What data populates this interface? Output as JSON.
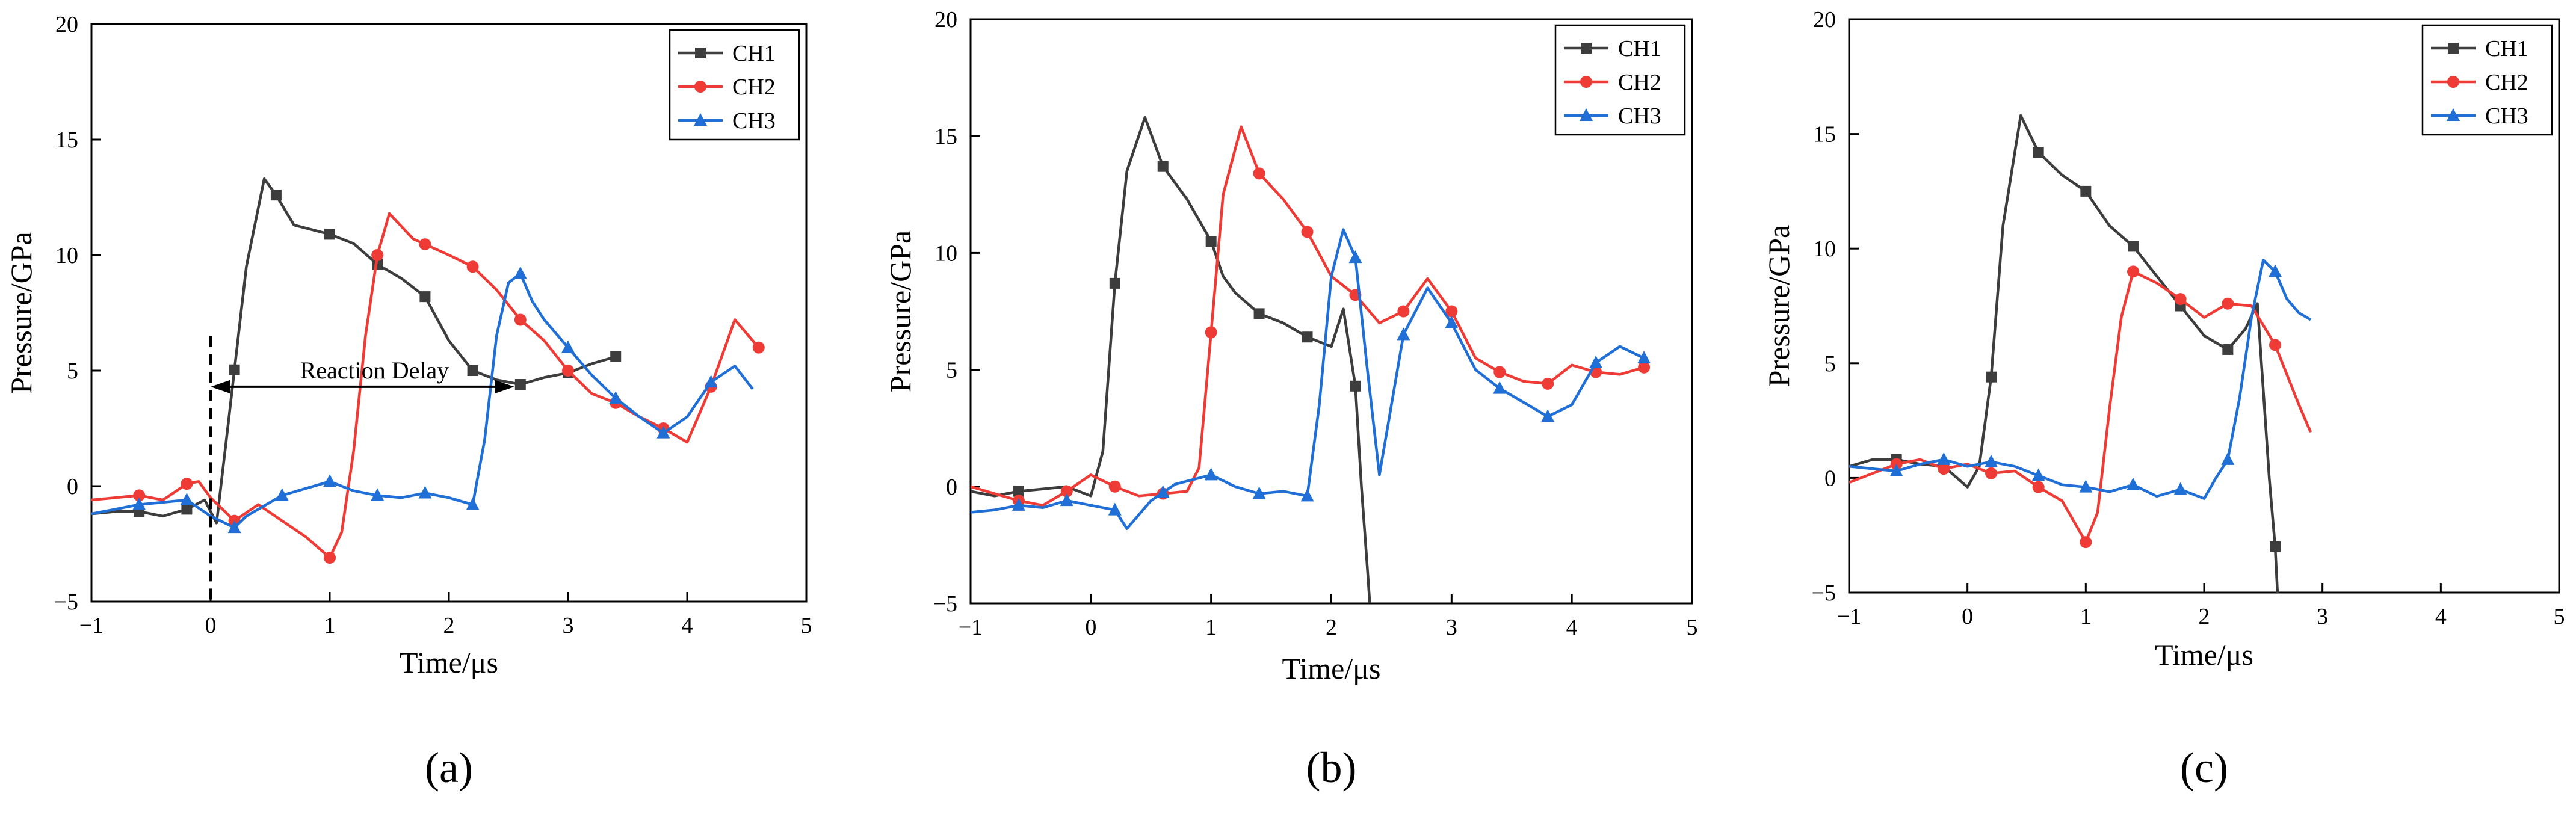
{
  "colors": {
    "CH1": "#3d3d3d",
    "CH2": "#ef3b36",
    "CH3": "#1f6fd6",
    "axis": "#000000"
  },
  "chart_data": [
    {
      "type": "line",
      "label": "(a)",
      "xlabel": "Time/μs",
      "ylabel": "Pressure/GPa",
      "xlim": [
        -1,
        5
      ],
      "ylim": [
        -5,
        20
      ],
      "xticks": [
        "−1",
        "0",
        "1",
        "2",
        "3",
        "4",
        "5"
      ],
      "yticks": [
        "−5",
        "0",
        "5",
        "10",
        "15",
        "20"
      ],
      "legend": "top-right",
      "annotation": {
        "text": "Reaction Delay",
        "from_x": 0,
        "to_x": 2.55,
        "y": 4.3,
        "dashed_line_x": 0
      },
      "series": [
        {
          "name": "CH1",
          "marker": "square",
          "x": [
            -1,
            -0.8,
            -0.6,
            -0.4,
            -0.2,
            -0.05,
            0.05,
            0.15,
            0.3,
            0.45,
            0.55,
            0.7,
            1.0,
            1.2,
            1.4,
            1.6,
            1.8,
            2.0,
            2.2,
            2.4,
            2.6,
            2.8,
            3.0,
            3.2,
            3.4
          ],
          "y": [
            -1.2,
            -1.1,
            -1.1,
            -1.3,
            -1.0,
            -0.6,
            -1.6,
            2.8,
            9.5,
            13.3,
            12.6,
            11.3,
            10.9,
            10.5,
            9.6,
            9.0,
            8.2,
            6.3,
            5.0,
            4.6,
            4.4,
            4.7,
            4.9,
            5.3,
            5.6
          ],
          "markers_x": [
            -0.6,
            -0.2,
            0.2,
            0.55,
            1.0,
            1.4,
            1.8,
            2.2,
            2.6,
            3.0,
            3.4
          ]
        },
        {
          "name": "CH2",
          "marker": "circle",
          "x": [
            -1,
            -0.8,
            -0.6,
            -0.4,
            -0.2,
            -0.1,
            0.0,
            0.2,
            0.4,
            0.6,
            0.8,
            1.0,
            1.1,
            1.2,
            1.3,
            1.4,
            1.5,
            1.7,
            2.0,
            2.2,
            2.4,
            2.6,
            2.8,
            3.0,
            3.2,
            3.4,
            3.6,
            3.8,
            4.0,
            4.2,
            4.4,
            4.6
          ],
          "y": [
            -0.6,
            -0.5,
            -0.4,
            -0.6,
            0.1,
            0.2,
            -0.5,
            -1.5,
            -0.8,
            -1.5,
            -2.2,
            -3.1,
            -2.0,
            1.5,
            6.5,
            10.0,
            11.8,
            10.7,
            10.0,
            9.5,
            8.5,
            7.2,
            6.3,
            5.0,
            4.0,
            3.6,
            3.0,
            2.5,
            1.9,
            4.3,
            7.2,
            6.0
          ],
          "markers_x": [
            -0.6,
            -0.2,
            0.2,
            1.0,
            1.4,
            1.8,
            2.2,
            2.6,
            3.0,
            3.4,
            3.8,
            4.2,
            4.6
          ]
        },
        {
          "name": "CH3",
          "marker": "triangle",
          "x": [
            -1,
            -0.8,
            -0.6,
            -0.4,
            -0.2,
            0.0,
            0.2,
            0.3,
            0.6,
            0.8,
            1.0,
            1.2,
            1.4,
            1.6,
            1.8,
            2.0,
            2.2,
            2.3,
            2.4,
            2.5,
            2.6,
            2.7,
            2.8,
            3.0,
            3.2,
            3.4,
            3.6,
            3.8,
            4.0,
            4.2,
            4.4,
            4.55
          ],
          "y": [
            -1.2,
            -1.0,
            -0.8,
            -0.7,
            -0.6,
            -1.3,
            -1.8,
            -1.3,
            -0.4,
            -0.1,
            0.2,
            -0.2,
            -0.4,
            -0.5,
            -0.3,
            -0.5,
            -0.8,
            2.0,
            6.5,
            8.8,
            9.2,
            8.0,
            7.2,
            6.0,
            4.8,
            3.8,
            3.0,
            2.3,
            3.0,
            4.5,
            5.2,
            4.2
          ],
          "markers_x": [
            -0.6,
            -0.2,
            0.2,
            0.6,
            1.0,
            1.4,
            1.8,
            2.2,
            2.6,
            3.0,
            3.4,
            3.8,
            4.2
          ]
        }
      ]
    },
    {
      "type": "line",
      "label": "(b)",
      "xlabel": "Time/μs",
      "ylabel": "Pressure/GPa",
      "xlim": [
        -1,
        5
      ],
      "ylim": [
        -5,
        20
      ],
      "xticks": [
        "−1",
        "0",
        "1",
        "2",
        "3",
        "4",
        "5"
      ],
      "yticks": [
        "−5",
        "0",
        "5",
        "10",
        "15",
        "20"
      ],
      "legend": "top-right",
      "series": [
        {
          "name": "CH1",
          "marker": "square",
          "x": [
            -1,
            -0.8,
            -0.6,
            -0.4,
            -0.2,
            0.0,
            0.1,
            0.2,
            0.3,
            0.45,
            0.6,
            0.8,
            1.0,
            1.1,
            1.2,
            1.4,
            1.6,
            1.8,
            2.0,
            2.1,
            2.2,
            2.25,
            2.3,
            2.32
          ],
          "y": [
            -0.2,
            -0.4,
            -0.2,
            -0.1,
            0.0,
            -0.4,
            1.5,
            8.7,
            13.5,
            15.8,
            13.7,
            12.3,
            10.5,
            9.0,
            8.3,
            7.4,
            7.0,
            6.4,
            6.0,
            7.6,
            4.3,
            0.0,
            -3.5,
            -5.0
          ],
          "markers_x": [
            -0.6,
            0.2,
            0.6,
            1.0,
            1.4,
            1.8,
            2.2
          ]
        },
        {
          "name": "CH2",
          "marker": "circle",
          "x": [
            -1,
            -0.8,
            -0.6,
            -0.4,
            -0.2,
            0.0,
            0.2,
            0.4,
            0.6,
            0.8,
            0.9,
            1.0,
            1.1,
            1.25,
            1.4,
            1.6,
            1.8,
            2.0,
            2.2,
            2.4,
            2.6,
            2.8,
            3.0,
            3.2,
            3.4,
            3.6,
            3.8,
            4.0,
            4.2,
            4.4,
            4.6
          ],
          "y": [
            0.0,
            -0.3,
            -0.6,
            -0.8,
            -0.2,
            0.5,
            0.0,
            -0.4,
            -0.3,
            -0.2,
            0.8,
            6.6,
            12.5,
            15.4,
            13.4,
            12.3,
            10.9,
            9.0,
            8.2,
            7.0,
            7.5,
            8.9,
            7.5,
            5.5,
            4.9,
            4.5,
            4.4,
            5.2,
            4.9,
            4.8,
            5.1
          ],
          "markers_x": [
            -0.6,
            -0.2,
            0.2,
            0.6,
            1.0,
            1.4,
            1.8,
            2.2,
            2.6,
            3.0,
            3.4,
            3.8,
            4.2,
            4.6
          ]
        },
        {
          "name": "CH3",
          "marker": "triangle",
          "x": [
            -1,
            -0.8,
            -0.6,
            -0.4,
            -0.2,
            0.0,
            0.2,
            0.3,
            0.5,
            0.7,
            1.0,
            1.2,
            1.4,
            1.6,
            1.8,
            1.9,
            2.0,
            2.1,
            2.2,
            2.3,
            2.4,
            2.5,
            2.6,
            2.8,
            3.0,
            3.2,
            3.4,
            3.6,
            3.8,
            4.0,
            4.2,
            4.4,
            4.6
          ],
          "y": [
            -1.1,
            -1.0,
            -0.8,
            -0.9,
            -0.6,
            -0.8,
            -1.0,
            -1.8,
            -0.6,
            0.1,
            0.5,
            0.0,
            -0.3,
            -0.2,
            -0.4,
            3.5,
            9.0,
            11.0,
            9.8,
            5.0,
            0.5,
            3.5,
            6.5,
            8.5,
            7.0,
            5.0,
            4.2,
            3.6,
            3.0,
            3.5,
            5.3,
            6.0,
            5.5
          ],
          "markers_x": [
            -0.6,
            -0.2,
            0.2,
            0.6,
            1.0,
            1.4,
            1.8,
            2.2,
            2.6,
            3.0,
            3.4,
            3.8,
            4.2,
            4.6
          ]
        }
      ]
    },
    {
      "type": "line",
      "label": "(c)",
      "xlabel": "Time/μs",
      "ylabel": "Pressure/GPa",
      "xlim": [
        -1,
        5
      ],
      "ylim": [
        -5,
        20
      ],
      "xticks": [
        "−1",
        "0",
        "1",
        "2",
        "3",
        "4",
        "5"
      ],
      "yticks": [
        "−5",
        "0",
        "5",
        "10",
        "15",
        "20"
      ],
      "legend": "top-right",
      "series": [
        {
          "name": "CH1",
          "marker": "square",
          "x": [
            -1,
            -0.8,
            -0.6,
            -0.4,
            -0.2,
            0.0,
            0.1,
            0.2,
            0.3,
            0.45,
            0.6,
            0.8,
            1.0,
            1.2,
            1.4,
            1.6,
            1.8,
            2.0,
            2.2,
            2.35,
            2.45,
            2.55,
            2.6,
            2.62
          ],
          "y": [
            0.5,
            0.8,
            0.8,
            0.6,
            0.5,
            -0.4,
            0.5,
            4.4,
            11.0,
            15.8,
            14.2,
            13.2,
            12.5,
            11.0,
            10.1,
            8.8,
            7.5,
            6.2,
            5.6,
            6.5,
            7.6,
            0.0,
            -3.0,
            -5.0
          ],
          "markers_x": [
            -0.6,
            -0.2,
            0.2,
            0.6,
            1.0,
            1.4,
            1.8,
            2.2,
            2.6
          ]
        },
        {
          "name": "CH2",
          "marker": "circle",
          "x": [
            -1,
            -0.8,
            -0.6,
            -0.4,
            -0.2,
            0.0,
            0.2,
            0.4,
            0.6,
            0.8,
            1.0,
            1.1,
            1.2,
            1.3,
            1.4,
            1.6,
            1.8,
            2.0,
            2.2,
            2.4,
            2.6,
            2.8,
            2.9
          ],
          "y": [
            -0.2,
            0.2,
            0.6,
            0.8,
            0.4,
            0.6,
            0.2,
            0.3,
            -0.4,
            -1.0,
            -2.8,
            -1.5,
            3.0,
            7.0,
            9.0,
            8.5,
            7.8,
            7.0,
            7.6,
            7.5,
            5.8,
            3.2,
            2.0
          ],
          "markers_x": [
            -0.6,
            -0.2,
            0.2,
            0.6,
            1.0,
            1.4,
            1.8,
            2.2,
            2.6
          ]
        },
        {
          "name": "CH3",
          "marker": "triangle",
          "x": [
            -1,
            -0.8,
            -0.6,
            -0.4,
            -0.2,
            0.0,
            0.2,
            0.4,
            0.6,
            0.8,
            1.0,
            1.2,
            1.4,
            1.6,
            1.8,
            2.0,
            2.1,
            2.2,
            2.3,
            2.4,
            2.5,
            2.6,
            2.7,
            2.8,
            2.9
          ],
          "y": [
            0.5,
            0.4,
            0.3,
            0.6,
            0.8,
            0.5,
            0.7,
            0.5,
            0.1,
            -0.3,
            -0.4,
            -0.6,
            -0.3,
            -0.8,
            -0.5,
            -0.9,
            0.0,
            0.8,
            3.5,
            7.0,
            9.5,
            9.0,
            7.8,
            7.2,
            6.9
          ],
          "markers_x": [
            -0.6,
            -0.2,
            0.2,
            0.6,
            1.0,
            1.4,
            1.8,
            2.2,
            2.6
          ]
        }
      ]
    }
  ]
}
